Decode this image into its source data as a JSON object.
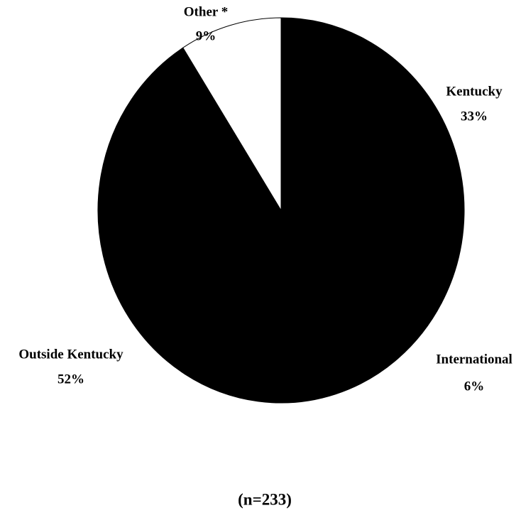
{
  "chart_data": {
    "type": "pie",
    "categories": [
      "Kentucky",
      "International",
      "Outside Kentucky",
      "Other *"
    ],
    "values": [
      33,
      6,
      52,
      9
    ],
    "value_labels": [
      "33%",
      "6%",
      "52%",
      "9%"
    ],
    "colors": [
      "#000000",
      "#000000",
      "#000000",
      "#ffffff"
    ],
    "note": "(n=233)"
  }
}
